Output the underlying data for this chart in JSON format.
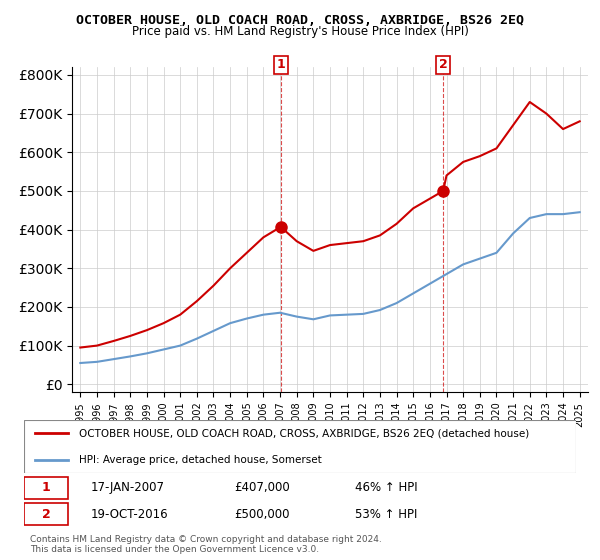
{
  "title": "OCTOBER HOUSE, OLD COACH ROAD, CROSS, AXBRIDGE, BS26 2EQ",
  "subtitle": "Price paid vs. HM Land Registry's House Price Index (HPI)",
  "legend_line1": "OCTOBER HOUSE, OLD COACH ROAD, CROSS, AXBRIDGE, BS26 2EQ (detached house)",
  "legend_line2": "HPI: Average price, detached house, Somerset",
  "footnote": "Contains HM Land Registry data © Crown copyright and database right 2024.\nThis data is licensed under the Open Government Licence v3.0.",
  "sale1_label": "1",
  "sale1_date": "17-JAN-2007",
  "sale1_price": "£407,000",
  "sale1_hpi": "46% ↑ HPI",
  "sale2_label": "2",
  "sale2_date": "19-OCT-2016",
  "sale2_price": "£500,000",
  "sale2_hpi": "53% ↑ HPI",
  "red_color": "#cc0000",
  "blue_color": "#6699cc",
  "ylim": [
    0,
    800000
  ],
  "yticks": [
    0,
    100000,
    200000,
    300000,
    400000,
    500000,
    600000,
    700000,
    800000
  ],
  "sale1_year": 2007.04,
  "sale1_val": 407000,
  "sale2_year": 2016.8,
  "sale2_val": 500000,
  "hpi_years": [
    1995,
    1996,
    1997,
    1998,
    1999,
    2000,
    2001,
    2002,
    2003,
    2004,
    2005,
    2006,
    2007,
    2008,
    2009,
    2010,
    2011,
    2012,
    2013,
    2014,
    2015,
    2016,
    2017,
    2018,
    2019,
    2020,
    2021,
    2022,
    2023,
    2024,
    2025
  ],
  "hpi_vals": [
    55000,
    58000,
    65000,
    72000,
    80000,
    90000,
    100000,
    118000,
    138000,
    158000,
    170000,
    180000,
    185000,
    175000,
    168000,
    178000,
    180000,
    182000,
    192000,
    210000,
    235000,
    260000,
    285000,
    310000,
    325000,
    340000,
    390000,
    430000,
    440000,
    440000,
    445000
  ],
  "red_years": [
    1995,
    1996,
    1997,
    1998,
    1999,
    2000,
    2001,
    2002,
    2003,
    2004,
    2005,
    2006,
    2007.04,
    2008,
    2009,
    2010,
    2011,
    2012,
    2013,
    2014,
    2015,
    2016.8,
    2017,
    2018,
    2019,
    2020,
    2021,
    2022,
    2023,
    2024,
    2025
  ],
  "red_vals": [
    95000,
    100000,
    112000,
    125000,
    140000,
    158000,
    180000,
    215000,
    255000,
    300000,
    340000,
    380000,
    407000,
    370000,
    345000,
    360000,
    365000,
    370000,
    385000,
    415000,
    455000,
    500000,
    540000,
    575000,
    590000,
    610000,
    670000,
    730000,
    700000,
    660000,
    680000
  ]
}
